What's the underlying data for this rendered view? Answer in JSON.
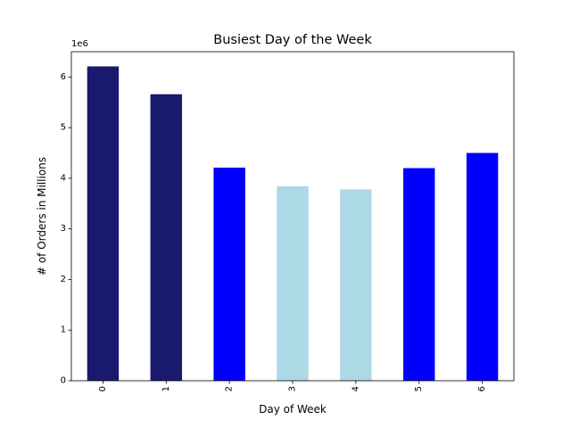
{
  "chart_data": {
    "type": "bar",
    "title": "Busiest Day of the Week",
    "xlabel": "Day of Week",
    "ylabel": "# of Orders in Millions",
    "y_offset_label": "1e6",
    "y_multiplier": 1000000,
    "categories": [
      "0",
      "1",
      "2",
      "3",
      "4",
      "5",
      "6"
    ],
    "values": [
      6210000,
      5660000,
      4210000,
      3840000,
      3780000,
      4200000,
      4500000
    ],
    "bar_colors": [
      "#191970",
      "#191970",
      "#0000ff",
      "#add8e6",
      "#add8e6",
      "#0000ff",
      "#0000ff"
    ],
    "ylim": [
      0,
      6500000
    ],
    "yticks": [
      0,
      1,
      2,
      3,
      4,
      5,
      6
    ],
    "grid": false,
    "legend": "none",
    "x_tick_rotation": 90
  }
}
